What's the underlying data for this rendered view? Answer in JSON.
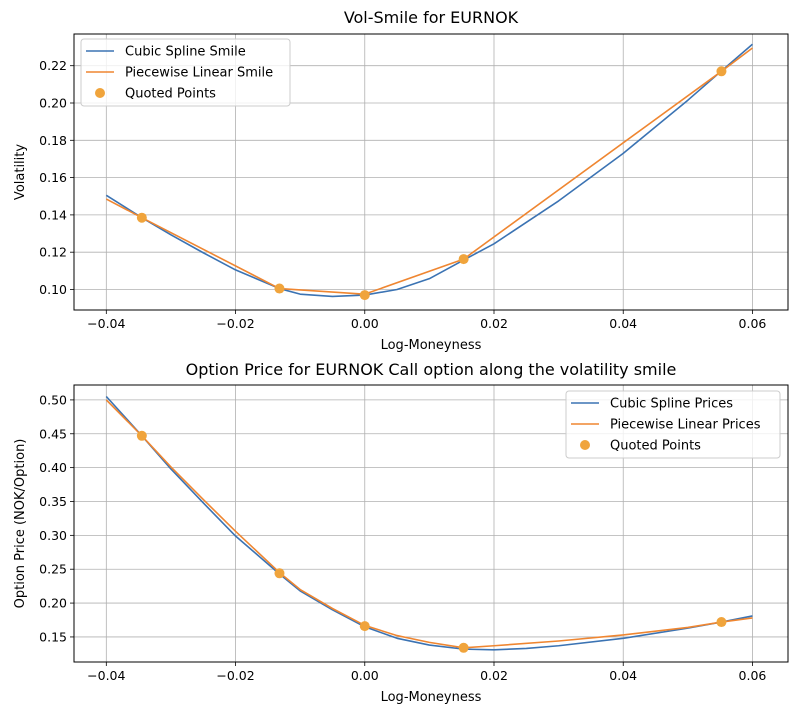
{
  "chart_data": [
    {
      "type": "line",
      "title": "Vol-Smile for EURNOK",
      "xlabel": "Log-Moneyness",
      "ylabel": "Volatility",
      "xlim": [
        -0.045,
        0.0655
      ],
      "ylim": [
        0.089,
        0.237
      ],
      "xticks": [
        -0.04,
        -0.02,
        0.0,
        0.02,
        0.04,
        0.06
      ],
      "xtick_labels": [
        "−0.04",
        "−0.02",
        "0.00",
        "0.02",
        "0.04",
        "0.06"
      ],
      "yticks": [
        0.1,
        0.12,
        0.14,
        0.16,
        0.18,
        0.2,
        0.22
      ],
      "ytick_labels": [
        "0.10",
        "0.12",
        "0.14",
        "0.16",
        "0.18",
        "0.20",
        "0.22"
      ],
      "grid": true,
      "legend_position": "top-left",
      "series": [
        {
          "name": "Cubic Spline Smile",
          "kind": "line",
          "color": "#3b73b3",
          "x": [
            -0.04,
            -0.0345,
            -0.03,
            -0.025,
            -0.02,
            -0.0132,
            -0.01,
            -0.005,
            0.0,
            0.005,
            0.01,
            0.0153,
            0.02,
            0.03,
            0.04,
            0.05,
            0.0552,
            0.06
          ],
          "y": [
            0.1505,
            0.1385,
            0.1293,
            0.1197,
            0.1105,
            0.1005,
            0.0975,
            0.0963,
            0.097,
            0.1,
            0.1058,
            0.1158,
            0.1245,
            0.1475,
            0.173,
            0.2015,
            0.2172,
            0.2315
          ]
        },
        {
          "name": "Piecewise Linear Smile",
          "kind": "line",
          "color": "#ef8631",
          "x": [
            -0.04,
            -0.0345,
            -0.0132,
            0.0,
            0.0153,
            0.0552,
            0.06
          ],
          "y": [
            0.1485,
            0.1385,
            0.1005,
            0.0975,
            0.1163,
            0.217,
            0.2295
          ]
        },
        {
          "name": "Quoted Points",
          "kind": "scatter",
          "color": "#f0a43c",
          "x": [
            -0.0345,
            -0.0132,
            0.0,
            0.0153,
            0.0552
          ],
          "y": [
            0.1385,
            0.1005,
            0.097,
            0.1163,
            0.217
          ]
        }
      ]
    },
    {
      "type": "line",
      "title": "Option Price for EURNOK Call option along the volatility smile",
      "xlabel": "Log-Moneyness",
      "ylabel": "Option Price (NOK/Option)",
      "xlim": [
        -0.045,
        0.0655
      ],
      "ylim": [
        0.113,
        0.522
      ],
      "xticks": [
        -0.04,
        -0.02,
        0.0,
        0.02,
        0.04,
        0.06
      ],
      "xtick_labels": [
        "−0.04",
        "−0.02",
        "0.00",
        "0.02",
        "0.04",
        "0.06"
      ],
      "yticks": [
        0.15,
        0.2,
        0.25,
        0.3,
        0.35,
        0.4,
        0.45,
        0.5
      ],
      "ytick_labels": [
        "0.15",
        "0.20",
        "0.25",
        "0.30",
        "0.35",
        "0.40",
        "0.45",
        "0.50"
      ],
      "grid": true,
      "legend_position": "top-right",
      "series": [
        {
          "name": "Cubic Spline Prices",
          "kind": "line",
          "color": "#3b73b3",
          "x": [
            -0.04,
            -0.0345,
            -0.03,
            -0.025,
            -0.02,
            -0.0132,
            -0.01,
            -0.005,
            0.0,
            0.005,
            0.01,
            0.0153,
            0.02,
            0.025,
            0.03,
            0.04,
            0.05,
            0.0552,
            0.06
          ],
          "y": [
            0.505,
            0.447,
            0.398,
            0.348,
            0.299,
            0.243,
            0.218,
            0.19,
            0.165,
            0.148,
            0.138,
            0.132,
            0.131,
            0.133,
            0.137,
            0.148,
            0.163,
            0.172,
            0.181
          ]
        },
        {
          "name": "Piecewise Linear Prices",
          "kind": "line",
          "color": "#ef8631",
          "x": [
            -0.04,
            -0.0345,
            -0.03,
            -0.025,
            -0.02,
            -0.0132,
            -0.01,
            -0.005,
            0.0,
            0.005,
            0.01,
            0.0153,
            0.02,
            0.03,
            0.04,
            0.05,
            0.0552,
            0.06
          ],
          "y": [
            0.5,
            0.447,
            0.401,
            0.353,
            0.306,
            0.245,
            0.22,
            0.192,
            0.167,
            0.152,
            0.142,
            0.134,
            0.137,
            0.144,
            0.153,
            0.164,
            0.172,
            0.178
          ]
        },
        {
          "name": "Quoted Points",
          "kind": "scatter",
          "color": "#f0a43c",
          "x": [
            -0.0345,
            -0.0132,
            0.0,
            0.0153,
            0.0552
          ],
          "y": [
            0.447,
            0.244,
            0.166,
            0.134,
            0.172
          ]
        }
      ]
    }
  ]
}
